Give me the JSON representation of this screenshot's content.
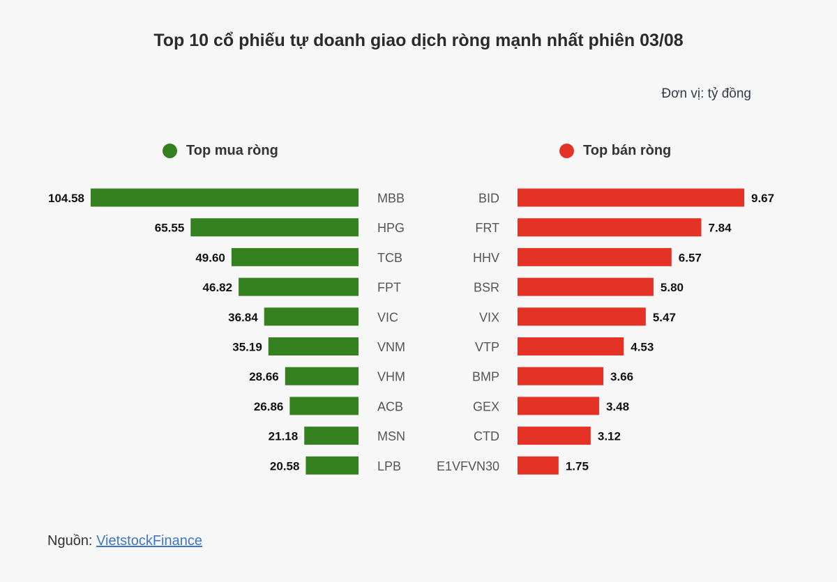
{
  "title": "Top 10 cổ phiếu tự doanh giao dịch ròng mạnh nhất phiên 03/08",
  "unit": "Đơn vị: tỷ đồng",
  "legend": {
    "buy": "Top mua ròng",
    "sell": "Top bán ròng"
  },
  "colors": {
    "buy": "#35801f",
    "sell": "#e43326"
  },
  "source": {
    "label": "Nguồn:",
    "link_text": "VietstockFinance"
  },
  "chart_data": [
    {
      "type": "bar",
      "orientation": "horizontal",
      "direction": "right-to-left",
      "legend": "Top mua ròng",
      "categories": [
        "MBB",
        "HPG",
        "TCB",
        "FPT",
        "VIC",
        "VNM",
        "VHM",
        "ACB",
        "MSN",
        "LPB"
      ],
      "values": [
        104.58,
        65.55,
        49.6,
        46.82,
        36.84,
        35.19,
        28.66,
        26.86,
        21.18,
        20.58
      ],
      "value_labels": [
        "104.58",
        "65.55",
        "49.60",
        "46.82",
        "36.84",
        "35.19",
        "28.66",
        "26.86",
        "21.18",
        "20.58"
      ],
      "color": "#35801f"
    },
    {
      "type": "bar",
      "orientation": "horizontal",
      "direction": "left-to-right",
      "legend": "Top bán ròng",
      "categories": [
        "BID",
        "FRT",
        "HHV",
        "BSR",
        "VIX",
        "VTP",
        "BMP",
        "GEX",
        "CTD",
        "E1VFVN30"
      ],
      "values": [
        9.67,
        7.84,
        6.57,
        5.8,
        5.47,
        4.53,
        3.66,
        3.48,
        3.12,
        1.75
      ],
      "value_labels": [
        "9.67",
        "7.84",
        "6.57",
        "5.80",
        "5.47",
        "4.53",
        "3.66",
        "3.48",
        "3.12",
        "1.75"
      ],
      "color": "#e43326"
    }
  ]
}
